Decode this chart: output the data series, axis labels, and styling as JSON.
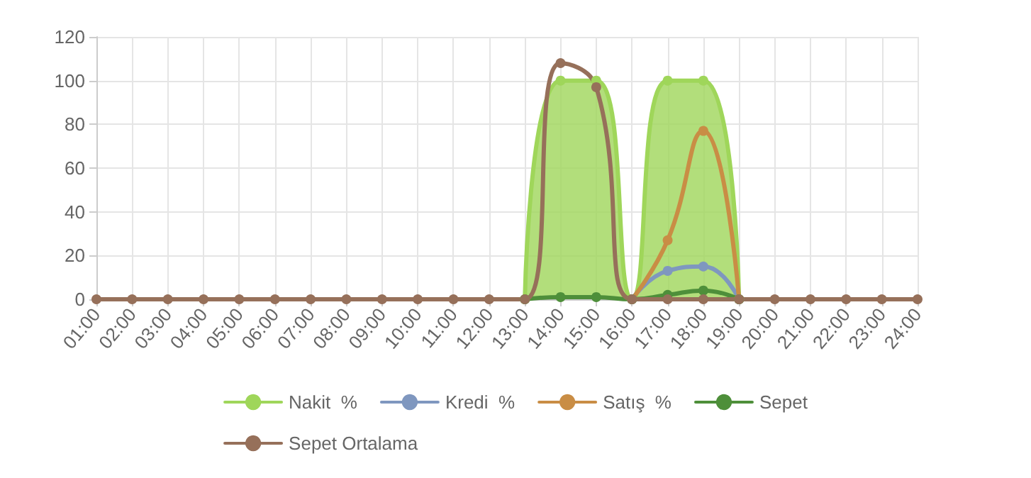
{
  "chart_data": {
    "type": "line",
    "categories": [
      "01:00",
      "02:00",
      "03:00",
      "04:00",
      "05:00",
      "06:00",
      "07:00",
      "08:00",
      "09:00",
      "10:00",
      "11:00",
      "12:00",
      "13:00",
      "14:00",
      "15:00",
      "16:00",
      "17:00",
      "18:00",
      "19:00",
      "20:00",
      "21:00",
      "22:00",
      "23:00",
      "24:00"
    ],
    "series": [
      {
        "name": "Nakit  %",
        "type": "area",
        "color": "#9fd65a",
        "values": [
          null,
          null,
          null,
          null,
          null,
          null,
          null,
          null,
          null,
          null,
          null,
          null,
          0,
          100,
          100,
          0,
          100,
          100,
          0,
          null,
          null,
          null,
          null,
          null
        ]
      },
      {
        "name": "Kredi  %",
        "color": "#7f97bf",
        "values": [
          null,
          null,
          null,
          null,
          null,
          null,
          null,
          null,
          null,
          null,
          null,
          null,
          null,
          null,
          null,
          0,
          13,
          15,
          0,
          null,
          null,
          null,
          null,
          null
        ]
      },
      {
        "name": "Satış  %",
        "color": "#c98d45",
        "values": [
          null,
          null,
          null,
          null,
          null,
          null,
          null,
          null,
          null,
          null,
          null,
          null,
          null,
          null,
          null,
          0,
          27,
          77,
          0,
          null,
          null,
          null,
          null,
          null
        ]
      },
      {
        "name": "Sepet",
        "color": "#4e8f3a",
        "values": [
          null,
          null,
          null,
          null,
          null,
          null,
          null,
          null,
          null,
          null,
          null,
          null,
          0,
          1,
          1,
          0,
          2,
          4,
          0,
          null,
          null,
          null,
          null,
          null
        ]
      },
      {
        "name": "Sepet Ortalama",
        "color": "#96705a",
        "values": [
          0,
          0,
          0,
          0,
          0,
          0,
          0,
          0,
          0,
          0,
          0,
          0,
          0,
          108,
          97,
          0,
          0,
          0,
          0,
          0,
          0,
          0,
          0,
          0
        ]
      }
    ],
    "ylim": [
      0,
      120
    ],
    "yticks": [
      0,
      20,
      40,
      60,
      80,
      100,
      120
    ],
    "grid": true,
    "legend": "bottom",
    "marker": "circle",
    "line_style": "solid"
  }
}
